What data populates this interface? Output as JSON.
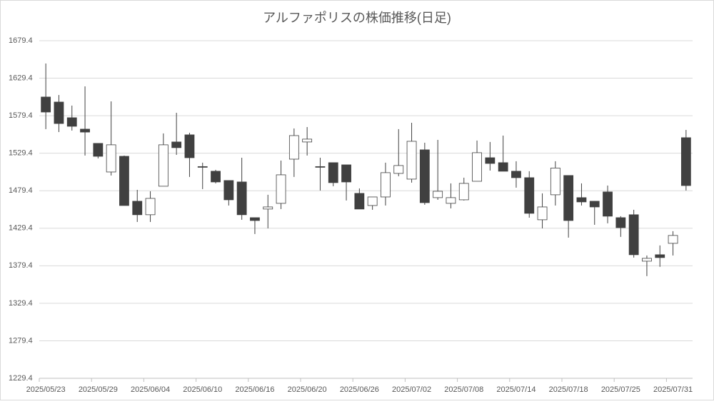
{
  "chart_data": {
    "type": "candlestick",
    "title": "アルファポリスの株価推移(日足)",
    "categories": [
      "2025/05/23",
      null,
      null,
      null,
      "2025/05/29",
      null,
      null,
      null,
      "2025/06/04",
      null,
      null,
      null,
      "2025/06/10",
      null,
      null,
      null,
      "2025/06/16",
      null,
      null,
      null,
      "2025/06/20",
      null,
      null,
      null,
      "2025/06/26",
      null,
      null,
      null,
      "2025/07/02",
      null,
      null,
      null,
      "2025/07/08",
      null,
      null,
      null,
      "2025/07/14",
      null,
      null,
      null,
      "2025/07/18",
      null,
      null,
      null,
      "2025/07/25",
      null,
      null,
      null,
      "2025/07/31",
      null
    ],
    "open": [
      1604.3,
      1597.6,
      1576.7,
      1561.5,
      1542.5,
      1504.4,
      1525.3,
      1465.4,
      1447.4,
      1485.4,
      1544.4,
      1553.9,
      1511.6,
      1505.4,
      1493.0,
      1491.1,
      1443.5,
      1455.0,
      1462.6,
      1521.5,
      1544.4,
      1511.6,
      1516.8,
      1513.9,
      1475.9,
      1459.7,
      1471.1,
      1502.5,
      1494.9,
      1533.9,
      1470.2,
      1462.6,
      1467.3,
      1492.0,
      1523.4,
      1516.8,
      1505.4,
      1496.8,
      1440.7,
      1474.0,
      1499.7,
      1470.2,
      1465.4,
      1477.8,
      1443.5,
      1447.4,
      1385.5,
      1394.1,
      1409.3,
      1550.1
    ],
    "high": [
      1649.0,
      1607.0,
      1592.9,
      1618.5,
      1542.5,
      1598.5,
      1526.3,
      1480.6,
      1478.7,
      1555.8,
      1583.3,
      1556.7,
      1516.8,
      1507.3,
      1493.0,
      1523.4,
      1443.5,
      1474.0,
      1519.6,
      1562.4,
      1564.3,
      1523.4,
      1516.8,
      1513.9,
      1482.5,
      1471.1,
      1516.8,
      1561.5,
      1570.0,
      1543.4,
      1547.2,
      1489.2,
      1496.8,
      1546.3,
      1544.4,
      1552.9,
      1518.7,
      1505.4,
      1475.9,
      1518.7,
      1499.7,
      1489.2,
      1465.4,
      1486.3,
      1445.5,
      1454.0,
      1393.1,
      1406.5,
      1425.5,
      1560.5
    ],
    "low": [
      1561.5,
      1557.6,
      1559.6,
      1526.3,
      1522.5,
      1499.7,
      1459.7,
      1437.8,
      1437.8,
      1485.4,
      1527.2,
      1497.8,
      1481.6,
      1489.2,
      1459.7,
      1440.7,
      1421.7,
      1429.3,
      1455.0,
      1497.8,
      1526.3,
      1479.7,
      1485.4,
      1466.4,
      1455.0,
      1454.0,
      1459.7,
      1498.7,
      1490.2,
      1460.7,
      1467.3,
      1455.9,
      1466.4,
      1492.0,
      1506.3,
      1505.4,
      1483.5,
      1443.5,
      1429.3,
      1459.7,
      1416.9,
      1459.7,
      1434.0,
      1436.0,
      1417.9,
      1390.3,
      1365.6,
      1378.0,
      1393.1,
      1479.7
    ],
    "close": [
      1584.3,
      1569.0,
      1565.3,
      1557.6,
      1525.3,
      1540.6,
      1459.7,
      1447.4,
      1469.2,
      1540.6,
      1536.8,
      1523.4,
      1511.0,
      1491.1,
      1467.3,
      1447.4,
      1439.7,
      1457.8,
      1500.6,
      1552.9,
      1548.2,
      1510.8,
      1490.2,
      1491.1,
      1455.0,
      1471.1,
      1503.5,
      1513.0,
      1545.3,
      1463.5,
      1478.7,
      1470.2,
      1489.2,
      1530.1,
      1515.8,
      1505.4,
      1496.8,
      1449.3,
      1457.8,
      1509.7,
      1439.7,
      1464.5,
      1457.8,
      1445.5,
      1430.2,
      1394.1,
      1389.3,
      1390.3,
      1419.8,
      1486.3
    ],
    "up_color": "#ffffff",
    "down_color": "#404040",
    "ylim": [
      1229.4,
      1679.4
    ],
    "yticks": [
      1229.4,
      1279.4,
      1329.4,
      1379.4,
      1429.4,
      1479.4,
      1529.4,
      1579.4,
      1629.4,
      1679.4
    ],
    "grid": true
  }
}
